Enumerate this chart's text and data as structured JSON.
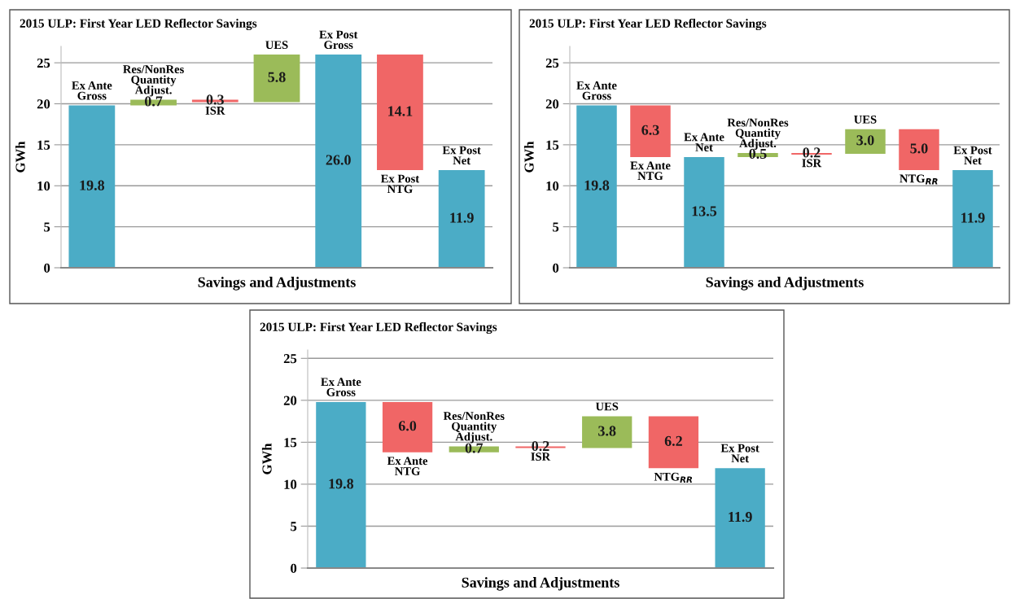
{
  "chart_data": [
    {
      "type": "bar",
      "title": "2015 ULP: First Year LED Reflector Savings",
      "xlabel": "Savings and Adjustments",
      "ylabel": "GWh",
      "categories": [
        "Ex Ante\nGross",
        "Res/NonRes\nQuantity\nAdjust.",
        "ISR",
        "UES",
        "Ex Post\nGross",
        "Ex Post\nNTG",
        "Ex Post\nNet"
      ],
      "values": [
        19.8,
        0.7,
        -0.3,
        5.8,
        26.0,
        -14.1,
        11.9
      ],
      "base": [
        0,
        19.8,
        20.5,
        20.2,
        0,
        26.0,
        0
      ],
      "colors": [
        "#4bacc6",
        "#9bbb59",
        "#f06666",
        "#9bbb59",
        "#4bacc6",
        "#f06666",
        "#4bacc6"
      ],
      "value_labels": [
        "19.8",
        "0.7",
        "0.3",
        "5.8",
        "26.0",
        "14.1",
        "11.9"
      ],
      "ylim": [
        0,
        27
      ],
      "yticks": [
        0,
        5,
        10,
        15,
        20,
        25
      ],
      "grid": "y",
      "tick_labels": "y"
    },
    {
      "type": "bar",
      "title": "2015 ULP: First Year LED Reflector Savings",
      "xlabel": "Savings and Adjustments",
      "ylabel": "GWh",
      "categories": [
        "Ex Ante\nGross",
        "Ex Ante\nNTG",
        "Ex Ante\nNet",
        "Res/NonRes\nQuantity\nAdjust.",
        "ISR",
        "UES",
        "NTG$_{RR}$",
        "Ex Post\nNet"
      ],
      "values": [
        19.8,
        -6.3,
        13.5,
        0.5,
        -0.2,
        3.0,
        -5.0,
        11.9
      ],
      "base": [
        0,
        19.8,
        0,
        13.5,
        14.0,
        13.9,
        16.9,
        0
      ],
      "colors": [
        "#4bacc6",
        "#f06666",
        "#4bacc6",
        "#9bbb59",
        "#f06666",
        "#9bbb59",
        "#f06666",
        "#4bacc6"
      ],
      "value_labels": [
        "19.8",
        "6.3",
        "13.5",
        "0.5",
        "0.2",
        "3.0",
        "5.0",
        "11.9"
      ],
      "ylim": [
        0,
        27
      ],
      "yticks": [
        0,
        5,
        10,
        15,
        20,
        25
      ],
      "grid": "y",
      "tick_labels": "y"
    },
    {
      "type": "bar",
      "title": "2015 ULP: First Year LED Reflector Savings",
      "xlabel": "Savings and Adjustments",
      "ylabel": "GWh",
      "categories": [
        "Ex Ante\nGross",
        "Ex Ante\nNTG",
        "Res/NonRes\nQuantity\nAdjust.",
        "ISR",
        "UES",
        "NTG$_{RR}$",
        "Ex Post\nNet"
      ],
      "values": [
        19.8,
        -6.0,
        0.7,
        -0.2,
        3.8,
        -6.2,
        11.9
      ],
      "base": [
        0,
        19.8,
        13.8,
        14.5,
        14.3,
        18.1,
        0
      ],
      "colors": [
        "#4bacc6",
        "#f06666",
        "#9bbb59",
        "#f06666",
        "#9bbb59",
        "#f06666",
        "#4bacc6"
      ],
      "value_labels": [
        "19.8",
        "6.0",
        "0.7",
        "0.2",
        "3.8",
        "6.2",
        "11.9"
      ],
      "ylim": [
        0,
        26
      ],
      "yticks": [
        0,
        5,
        10,
        15,
        20,
        25
      ],
      "grid": "y",
      "tick_labels": "y"
    }
  ]
}
